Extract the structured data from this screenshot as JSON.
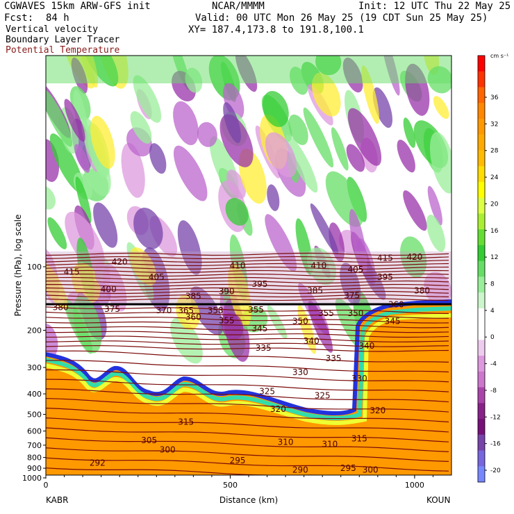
{
  "header": {
    "model": "CGWAVES 15km ARW-GFS init",
    "center": "NCAR/MMMM",
    "init": "Init: 12 UTC Thu 22 May 25",
    "fcst_label": "Fcst:",
    "fcst_value": "84 h",
    "valid": "Valid: 00 UTC Mon 26 May 25 (19 CDT Sun 25 May 25)",
    "xy": "XY= 187.4,173.8 to 191.8,100.1"
  },
  "fields": {
    "field1": "Vertical velocity",
    "field2": "Boundary Layer Tracer",
    "field3": "Potential Temperature",
    "field3_color": "#8b1a1a"
  },
  "colorbar": {
    "unit": "cm s⁻¹",
    "labels": [
      "36",
      "32",
      "28",
      "24",
      "20",
      "16",
      "12",
      "8",
      "4",
      "0",
      "-4",
      "-8",
      "-12",
      "-16",
      "-20"
    ],
    "colors": [
      "#ff0000",
      "#ff3300",
      "#ff6600",
      "#ff8800",
      "#ff9900",
      "#ffaa00",
      "#ffbb00",
      "#ffdd00",
      "#ffff00",
      "#ddff44",
      "#aaee33",
      "#66dd33",
      "#33cc33",
      "#66dd66",
      "#99ee99",
      "#ccf5cc",
      "#ffffff",
      "#ffffff",
      "#eeccee",
      "#dd99dd",
      "#cc77cc",
      "#aa44aa",
      "#882288",
      "#771177",
      "#7744aa",
      "#7766dd",
      "#7788ff"
    ]
  },
  "chart_data": {
    "type": "heatmap",
    "ylabel": "Pressure (hPa), log scale",
    "xlabel": "Distance (km)",
    "x_ticks": [
      0,
      500,
      1000
    ],
    "xlim": [
      0,
      1100
    ],
    "y_ticks": [
      100,
      200,
      300,
      400,
      500,
      600,
      700,
      800,
      900,
      1000
    ],
    "y_scale": "log",
    "endpoints": {
      "left": "KABR",
      "right": "KOUN"
    },
    "isentrope_labels": [
      {
        "x": 70,
        "p": 106,
        "label": "415"
      },
      {
        "x": 200,
        "p": 95,
        "label": "420"
      },
      {
        "x": 520,
        "p": 99,
        "label": "410"
      },
      {
        "x": 740,
        "p": 99,
        "label": "410"
      },
      {
        "x": 840,
        "p": 103,
        "label": "405"
      },
      {
        "x": 920,
        "p": 91,
        "label": "415"
      },
      {
        "x": 1000,
        "p": 90,
        "label": "420"
      },
      {
        "x": 170,
        "p": 128,
        "label": "400"
      },
      {
        "x": 300,
        "p": 112,
        "label": "405"
      },
      {
        "x": 580,
        "p": 121,
        "label": "395"
      },
      {
        "x": 920,
        "p": 112,
        "label": "395"
      },
      {
        "x": 1020,
        "p": 130,
        "label": "380"
      },
      {
        "x": 400,
        "p": 138,
        "label": "385"
      },
      {
        "x": 490,
        "p": 131,
        "label": "390"
      },
      {
        "x": 730,
        "p": 130,
        "label": "385"
      },
      {
        "x": 830,
        "p": 137,
        "label": "375"
      },
      {
        "x": 40,
        "p": 156,
        "label": "380"
      },
      {
        "x": 180,
        "p": 159,
        "label": "375"
      },
      {
        "x": 320,
        "p": 161,
        "label": "370"
      },
      {
        "x": 380,
        "p": 161,
        "label": "365"
      },
      {
        "x": 460,
        "p": 161,
        "label": "358"
      },
      {
        "x": 570,
        "p": 160,
        "label": "355"
      },
      {
        "x": 760,
        "p": 166,
        "label": "355"
      },
      {
        "x": 840,
        "p": 166,
        "label": "350"
      },
      {
        "x": 950,
        "p": 151,
        "label": "360"
      },
      {
        "x": 400,
        "p": 173,
        "label": "360"
      },
      {
        "x": 490,
        "p": 180,
        "label": "355"
      },
      {
        "x": 690,
        "p": 181,
        "label": "350"
      },
      {
        "x": 940,
        "p": 181,
        "label": "345"
      },
      {
        "x": 580,
        "p": 196,
        "label": "345"
      },
      {
        "x": 720,
        "p": 225,
        "label": "340"
      },
      {
        "x": 870,
        "p": 237,
        "label": "340"
      },
      {
        "x": 590,
        "p": 243,
        "label": "335"
      },
      {
        "x": 780,
        "p": 272,
        "label": "335"
      },
      {
        "x": 690,
        "p": 316,
        "label": "330"
      },
      {
        "x": 850,
        "p": 339,
        "label": "330"
      },
      {
        "x": 600,
        "p": 390,
        "label": "325"
      },
      {
        "x": 750,
        "p": 408,
        "label": "325"
      },
      {
        "x": 630,
        "p": 472,
        "label": "320"
      },
      {
        "x": 900,
        "p": 480,
        "label": "320"
      },
      {
        "x": 380,
        "p": 544,
        "label": "315"
      },
      {
        "x": 850,
        "p": 651,
        "label": "315"
      },
      {
        "x": 280,
        "p": 664,
        "label": "305"
      },
      {
        "x": 650,
        "p": 676,
        "label": "310"
      },
      {
        "x": 770,
        "p": 692,
        "label": "310"
      },
      {
        "x": 330,
        "p": 737,
        "label": "300"
      },
      {
        "x": 520,
        "p": 829,
        "label": "295"
      },
      {
        "x": 140,
        "p": 851,
        "label": "292"
      },
      {
        "x": 690,
        "p": 917,
        "label": "290"
      },
      {
        "x": 820,
        "p": 900,
        "label": "295"
      },
      {
        "x": 880,
        "p": 917,
        "label": "300"
      }
    ]
  }
}
